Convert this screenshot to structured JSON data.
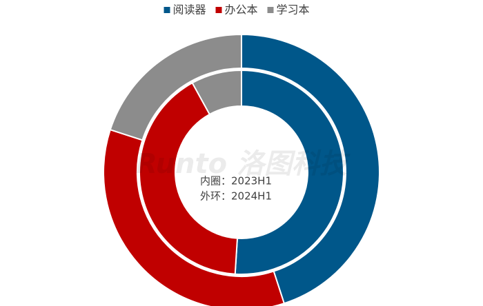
{
  "chart_data": {
    "type": "donut",
    "categories": [
      "阅读器",
      "办公本",
      "学习本"
    ],
    "colors": [
      "#00578a",
      "#c00000",
      "#8c8c8c"
    ],
    "series": [
      {
        "values": [
          51,
          41,
          8
        ]
      },
      {
        "values": [
          45,
          35,
          20
        ]
      }
    ],
    "annotations": [
      "内圈：2023H1",
      "外环：2024H1"
    ],
    "watermark": "Runto 洛图科技",
    "legend": "top"
  }
}
